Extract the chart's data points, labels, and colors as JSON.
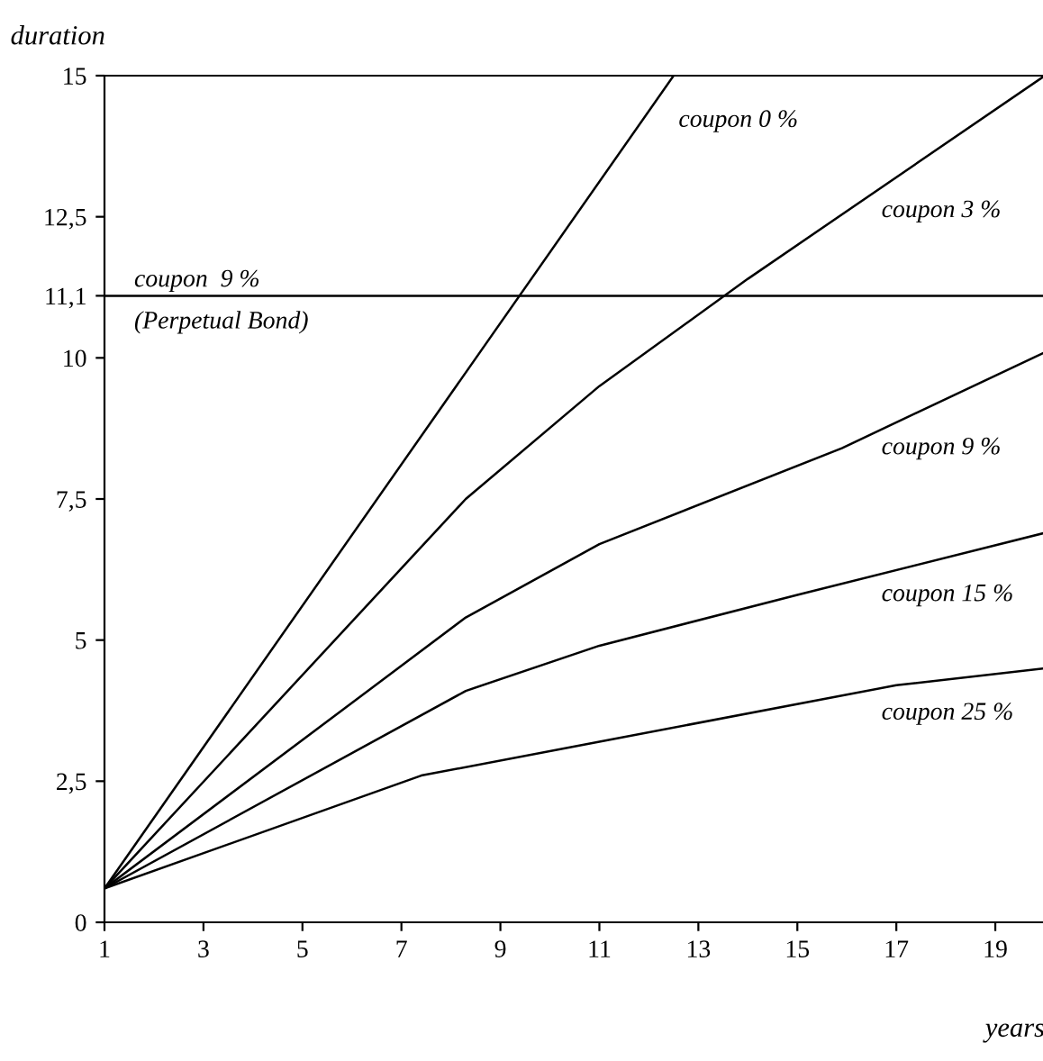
{
  "chart_data": {
    "type": "line",
    "xlabel": "years",
    "ylabel": "duration",
    "xlim": [
      1,
      20
    ],
    "ylim": [
      0,
      15
    ],
    "xticks": [
      1,
      3,
      5,
      7,
      9,
      11,
      13,
      15,
      17,
      19
    ],
    "yticks": [
      0,
      {
        "value": 2.5,
        "label": "2,5"
      },
      5,
      {
        "value": 7.5,
        "label": "7,5"
      },
      10,
      {
        "value": 11.1,
        "label": "11,1"
      },
      {
        "value": 12.5,
        "label": "12,5"
      },
      15
    ],
    "grid": false,
    "legend": false,
    "marker": "none",
    "line_style": "solid",
    "ref_lines": [
      {
        "axis": "y",
        "value": 11.1,
        "label": "coupon  9 %\n(Perpetual Bond)",
        "color": "#000000"
      }
    ],
    "series": [
      {
        "name": "coupon 0 %",
        "color": "#000000",
        "x": [
          1,
          12.5
        ],
        "values": [
          0.6,
          15
        ]
      },
      {
        "name": "coupon 3 %",
        "color": "#000000",
        "x": [
          1,
          8.3,
          11,
          14,
          20
        ],
        "values": [
          0.6,
          7.5,
          9.5,
          11.4,
          15
        ]
      },
      {
        "name": "coupon 9 %",
        "color": "#000000",
        "x": [
          1,
          8.3,
          11,
          15.9,
          20
        ],
        "values": [
          0.6,
          5.4,
          6.7,
          8.4,
          10.1
        ]
      },
      {
        "name": "coupon 15 %",
        "color": "#000000",
        "x": [
          1,
          8.3,
          11,
          15,
          20
        ],
        "values": [
          0.6,
          4.1,
          4.9,
          5.8,
          6.9
        ]
      },
      {
        "name": "coupon 25 %",
        "color": "#000000",
        "x": [
          1,
          7.4,
          11,
          17,
          20
        ],
        "values": [
          0.6,
          2.6,
          3.2,
          4.2,
          4.5
        ]
      }
    ]
  }
}
